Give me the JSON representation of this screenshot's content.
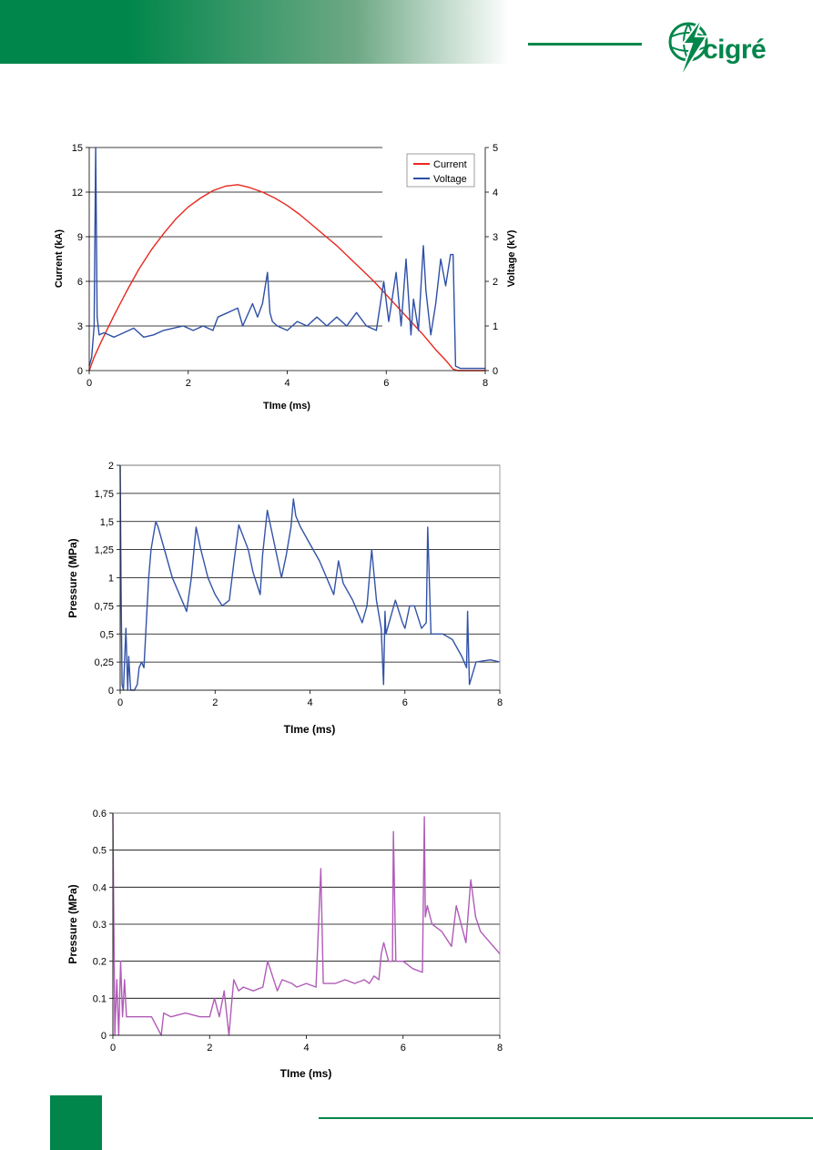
{
  "header": {
    "logo_text": "cigré",
    "logo_icon": "globe-lightning-icon"
  },
  "colors": {
    "brand": "#00864a",
    "current": "#e8281e",
    "voltage": "#2e4fa6",
    "pressure1": "#3353a8",
    "pressure2": "#b05bb8"
  },
  "chart_data": [
    {
      "type": "line",
      "xlabel": "TIme (ms)",
      "ylabel": "Current (kA)",
      "y2label": "Voltage (kV)",
      "xlim": [
        0,
        8
      ],
      "ylim": [
        0,
        15
      ],
      "y2lim": [
        0,
        5
      ],
      "xticks": [
        "0",
        "2",
        "4",
        "6",
        "8"
      ],
      "yticks": [
        "0",
        "3",
        "6",
        "9",
        "12",
        "15"
      ],
      "y2ticks": [
        "0",
        "1",
        "2",
        "3",
        "4",
        "5"
      ],
      "grid": true,
      "legend_position": "top-right",
      "series": [
        {
          "name": "Current",
          "axis": "left",
          "x": [
            0.0,
            0.1,
            0.25,
            0.5,
            0.75,
            1.0,
            1.25,
            1.5,
            1.75,
            2.0,
            2.25,
            2.5,
            2.75,
            3.0,
            3.25,
            3.5,
            3.75,
            4.0,
            4.25,
            4.5,
            4.75,
            5.0,
            5.25,
            5.5,
            5.75,
            6.0,
            6.25,
            6.5,
            6.75,
            7.0,
            7.2,
            7.35,
            7.45,
            7.6,
            7.8,
            8.0
          ],
          "values": [
            0.0,
            0.9,
            2.0,
            3.7,
            5.3,
            6.8,
            8.1,
            9.2,
            10.2,
            11.0,
            11.6,
            12.1,
            12.4,
            12.5,
            12.3,
            12.0,
            11.6,
            11.1,
            10.5,
            9.8,
            9.1,
            8.4,
            7.6,
            6.8,
            6.0,
            5.1,
            4.2,
            3.3,
            2.4,
            1.4,
            0.7,
            0.1,
            0.0,
            0.0,
            0.0,
            0.0
          ]
        },
        {
          "name": "Voltage",
          "axis": "right",
          "x": [
            0.0,
            0.05,
            0.1,
            0.13,
            0.16,
            0.2,
            0.3,
            0.5,
            0.7,
            0.9,
            1.1,
            1.3,
            1.5,
            1.7,
            1.9,
            2.1,
            2.3,
            2.5,
            2.6,
            2.8,
            3.0,
            3.1,
            3.3,
            3.4,
            3.5,
            3.6,
            3.65,
            3.7,
            3.8,
            4.0,
            4.2,
            4.4,
            4.6,
            4.8,
            5.0,
            5.2,
            5.4,
            5.6,
            5.8,
            5.95,
            6.05,
            6.2,
            6.3,
            6.4,
            6.5,
            6.55,
            6.65,
            6.75,
            6.8,
            6.9,
            7.0,
            7.1,
            7.2,
            7.3,
            7.35,
            7.4,
            7.5,
            7.6,
            7.8,
            8.0
          ],
          "values": [
            0.1,
            0.3,
            1.0,
            5.0,
            1.2,
            0.8,
            0.85,
            0.75,
            0.85,
            0.95,
            0.75,
            0.8,
            0.9,
            0.95,
            1.0,
            0.9,
            1.0,
            0.9,
            1.2,
            1.3,
            1.4,
            1.0,
            1.5,
            1.2,
            1.5,
            2.2,
            1.3,
            1.1,
            1.0,
            0.9,
            1.1,
            1.0,
            1.2,
            1.0,
            1.2,
            1.0,
            1.3,
            1.0,
            0.9,
            2.0,
            1.1,
            2.2,
            1.0,
            2.5,
            0.8,
            1.6,
            0.9,
            2.8,
            1.8,
            0.8,
            1.5,
            2.5,
            1.9,
            2.6,
            2.6,
            0.1,
            0.05,
            0.05,
            0.05,
            0.05
          ]
        }
      ]
    },
    {
      "type": "line",
      "xlabel": "TIme (ms)",
      "ylabel": "Pressure (MPa)",
      "xlim": [
        0,
        8
      ],
      "ylim": [
        0,
        2
      ],
      "xticks": [
        "0",
        "2",
        "4",
        "6",
        "8"
      ],
      "yticks": [
        "0",
        "0,25",
        "0,5",
        "0,75",
        "1",
        "1,25",
        "1,5",
        "1,75",
        "2"
      ],
      "grid": true,
      "series": [
        {
          "x": [
            0.0,
            0.02,
            0.04,
            0.07,
            0.12,
            0.16,
            0.18,
            0.22,
            0.3,
            0.36,
            0.4,
            0.45,
            0.5,
            0.55,
            0.6,
            0.65,
            0.75,
            0.8,
            0.9,
            1.1,
            1.3,
            1.4,
            1.5,
            1.6,
            1.7,
            1.85,
            2.0,
            2.15,
            2.3,
            2.4,
            2.5,
            2.7,
            2.8,
            2.95,
            3.0,
            3.1,
            3.2,
            3.4,
            3.5,
            3.6,
            3.65,
            3.7,
            3.8,
            4.0,
            4.2,
            4.4,
            4.5,
            4.6,
            4.7,
            4.9,
            5.1,
            5.2,
            5.3,
            5.4,
            5.5,
            5.55,
            5.58,
            5.6,
            5.8,
            5.95,
            6.0,
            6.1,
            6.2,
            6.35,
            6.45,
            6.48,
            6.55,
            6.6,
            6.8,
            7.0,
            7.2,
            7.3,
            7.32,
            7.36,
            7.5,
            7.8,
            8.0
          ],
          "values": [
            2.0,
            0.9,
            0.05,
            0.0,
            0.55,
            0.0,
            0.3,
            0.0,
            0.0,
            0.05,
            0.2,
            0.25,
            0.2,
            0.6,
            1.0,
            1.25,
            1.5,
            1.45,
            1.3,
            1.0,
            0.8,
            0.7,
            1.0,
            1.45,
            1.25,
            1.0,
            0.85,
            0.75,
            0.8,
            1.15,
            1.47,
            1.25,
            1.05,
            0.85,
            1.2,
            1.6,
            1.4,
            1.0,
            1.2,
            1.45,
            1.7,
            1.55,
            1.45,
            1.3,
            1.15,
            0.95,
            0.85,
            1.15,
            0.95,
            0.8,
            0.6,
            0.75,
            1.25,
            0.8,
            0.55,
            0.05,
            0.7,
            0.5,
            0.8,
            0.6,
            0.55,
            0.75,
            0.75,
            0.55,
            0.6,
            1.45,
            0.5,
            0.5,
            0.5,
            0.45,
            0.3,
            0.2,
            0.7,
            0.05,
            0.25,
            0.27,
            0.25
          ]
        }
      ]
    },
    {
      "type": "line",
      "xlabel": "TIme (ms)",
      "ylabel": "Pressure (MPa)",
      "xlim": [
        0,
        8
      ],
      "ylim": [
        0,
        0.6
      ],
      "xticks": [
        "0",
        "2",
        "4",
        "6",
        "8"
      ],
      "yticks": [
        "0",
        "0.1",
        "0.2",
        "0.3",
        "0.4",
        "0.5",
        "0.6"
      ],
      "grid": true,
      "series": [
        {
          "x": [
            0.0,
            0.04,
            0.08,
            0.12,
            0.16,
            0.2,
            0.24,
            0.28,
            0.32,
            0.5,
            0.8,
            1.0,
            1.05,
            1.2,
            1.5,
            1.8,
            2.0,
            2.1,
            2.2,
            2.3,
            2.4,
            2.45,
            2.5,
            2.6,
            2.7,
            2.9,
            3.1,
            3.2,
            3.4,
            3.5,
            3.7,
            3.8,
            4.0,
            4.2,
            4.3,
            4.35,
            4.6,
            4.8,
            5.0,
            5.2,
            5.3,
            5.4,
            5.5,
            5.55,
            5.6,
            5.7,
            5.78,
            5.8,
            5.85,
            6.0,
            6.2,
            6.4,
            6.44,
            6.46,
            6.5,
            6.6,
            6.8,
            7.0,
            7.1,
            7.3,
            7.4,
            7.5,
            7.6,
            7.8,
            8.0
          ],
          "values": [
            0.6,
            0.0,
            0.15,
            0.0,
            0.2,
            0.05,
            0.15,
            0.05,
            0.05,
            0.05,
            0.05,
            0.0,
            0.06,
            0.05,
            0.06,
            0.05,
            0.05,
            0.1,
            0.05,
            0.12,
            0.0,
            0.08,
            0.15,
            0.12,
            0.13,
            0.12,
            0.13,
            0.2,
            0.12,
            0.15,
            0.14,
            0.13,
            0.14,
            0.13,
            0.45,
            0.14,
            0.14,
            0.15,
            0.14,
            0.15,
            0.14,
            0.16,
            0.15,
            0.22,
            0.25,
            0.2,
            0.2,
            0.55,
            0.2,
            0.2,
            0.18,
            0.17,
            0.59,
            0.32,
            0.35,
            0.3,
            0.28,
            0.24,
            0.35,
            0.25,
            0.42,
            0.32,
            0.28,
            0.25,
            0.22
          ]
        }
      ]
    }
  ]
}
